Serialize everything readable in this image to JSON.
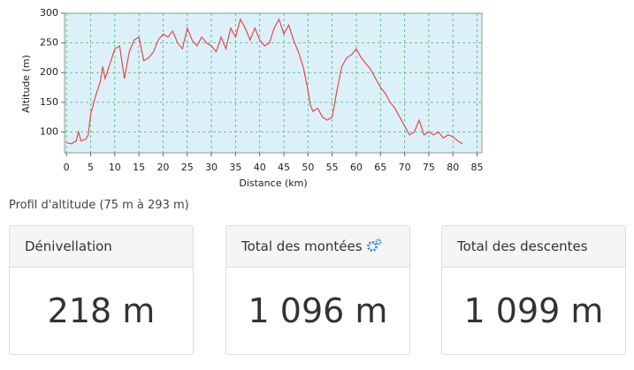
{
  "chart_data": {
    "type": "line",
    "xlabel": "Distance (km)",
    "ylabel": "Altitude (m)",
    "x": [
      0,
      1,
      2,
      2.5,
      3,
      4,
      4.5,
      5,
      6,
      7,
      7.5,
      8,
      9,
      10,
      11,
      12,
      13,
      14,
      15,
      16,
      17,
      18,
      19,
      20,
      21,
      22,
      23,
      24,
      25,
      26,
      27,
      28,
      29,
      30,
      31,
      32,
      33,
      34,
      35,
      36,
      37,
      38,
      39,
      40,
      41,
      42,
      43,
      44,
      45,
      46,
      47,
      48,
      49,
      50,
      50.5,
      51,
      52,
      53,
      54,
      55,
      56,
      57,
      58,
      59,
      60,
      61,
      62,
      63,
      64,
      65,
      66,
      67,
      68,
      69,
      70,
      71,
      72,
      73,
      74,
      75,
      76,
      77,
      78,
      79,
      80,
      81,
      82
    ],
    "series": [
      {
        "name": "Altitude",
        "color": "#e8484a",
        "values": [
          82,
          80,
          85,
          100,
          85,
          88,
          95,
          130,
          160,
          185,
          210,
          190,
          215,
          240,
          245,
          190,
          235,
          255,
          260,
          220,
          225,
          235,
          255,
          265,
          260,
          270,
          250,
          240,
          275,
          255,
          245,
          260,
          250,
          245,
          235,
          260,
          240,
          275,
          260,
          290,
          275,
          255,
          275,
          255,
          245,
          250,
          275,
          290,
          265,
          280,
          255,
          235,
          210,
          170,
          145,
          135,
          140,
          125,
          120,
          125,
          170,
          210,
          225,
          230,
          240,
          225,
          215,
          205,
          190,
          175,
          165,
          150,
          140,
          125,
          110,
          95,
          100,
          120,
          95,
          100,
          95,
          100,
          90,
          95,
          92,
          85,
          80
        ]
      }
    ],
    "xlim": [
      -0.4,
      86
    ],
    "ylim": [
      65,
      300
    ],
    "xticks": [
      0,
      5,
      10,
      15,
      20,
      25,
      30,
      35,
      40,
      45,
      50,
      55,
      60,
      65,
      70,
      75,
      80,
      85
    ],
    "yticks": [
      100,
      150,
      200,
      250,
      300
    ],
    "grid": true,
    "background": "#dcf0fa"
  },
  "caption": "Profil d'altitude (75 m à 293 m)",
  "cards": [
    {
      "label": "Dénivellation",
      "value": "218 m"
    },
    {
      "label": "Total des montées",
      "value": "1 096 m"
    },
    {
      "label": "Total des descentes",
      "value": "1 099 m"
    }
  ]
}
